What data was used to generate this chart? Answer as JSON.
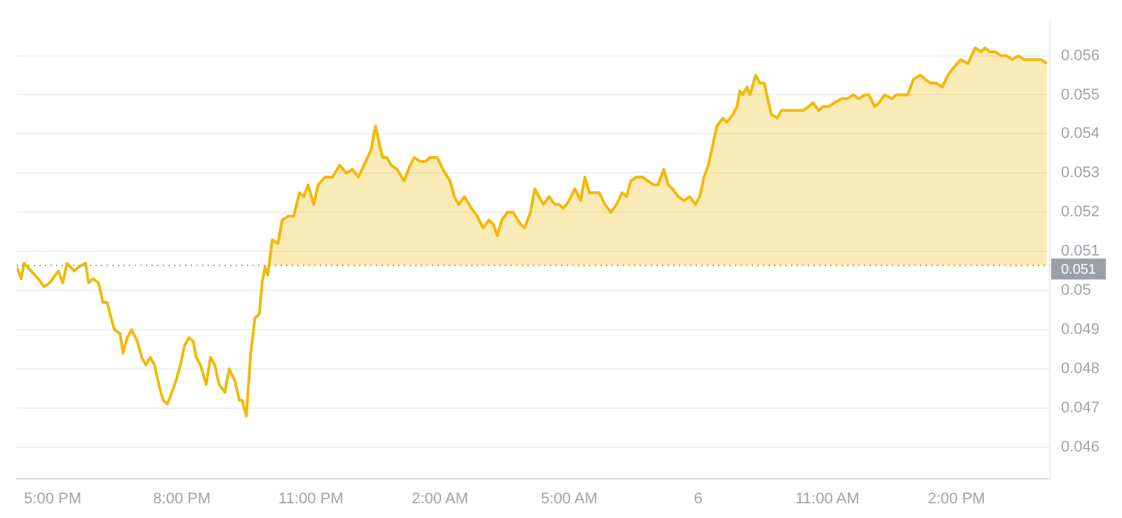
{
  "chart_data": {
    "type": "area",
    "legend": false,
    "grid": "y",
    "marker": "none",
    "line_style": "solid",
    "xlim": [
      "--01-05T16:10",
      "--01-06T16:10"
    ],
    "ylim": [
      0.0452,
      0.0569
    ],
    "xticks": [
      {
        "value": "--01-05T17:00",
        "label": "5:00 PM"
      },
      {
        "value": "--01-05T20:00",
        "label": "8:00 PM"
      },
      {
        "value": "--01-05T23:00",
        "label": "11:00 PM"
      },
      {
        "value": "--01-06T02:00",
        "label": "2:00 AM"
      },
      {
        "value": "--01-06T05:00",
        "label": "5:00 AM"
      },
      {
        "value": "--01-06T08:00",
        "label": "6"
      },
      {
        "value": "--01-06T11:00",
        "label": "11:00 AM"
      },
      {
        "value": "--01-06T14:00",
        "label": "2:00 PM"
      }
    ],
    "yticks": [
      0.046,
      0.047,
      0.048,
      0.049,
      0.05,
      0.051,
      0.052,
      0.053,
      0.054,
      0.055,
      0.056
    ],
    "ref_lines": [
      {
        "axis": "y",
        "value": 0.05064,
        "label": "0.051",
        "color": "#9aa0a6",
        "line_style": "dotted"
      }
    ],
    "series": [
      {
        "color": "#f0b90b",
        "x": [
          "--01-05T16:10",
          "--01-05T16:16",
          "--01-05T16:20",
          "--01-05T16:30",
          "--01-05T16:40",
          "--01-05T16:48",
          "--01-05T16:56",
          "--01-05T17:08",
          "--01-05T17:14",
          "--01-05T17:20",
          "--01-05T17:30",
          "--01-05T17:36",
          "--01-05T17:46",
          "--01-05T17:50",
          "--01-05T17:56",
          "--01-05T18:04",
          "--01-05T18:10",
          "--01-05T18:16",
          "--01-05T18:20",
          "--01-05T18:26",
          "--01-05T18:34",
          "--01-05T18:38",
          "--01-05T18:44",
          "--01-05T18:50",
          "--01-05T18:58",
          "--01-05T19:04",
          "--01-05T19:10",
          "--01-05T19:16",
          "--01-05T19:22",
          "--01-05T19:28",
          "--01-05T19:34",
          "--01-05T19:40",
          "--01-05T19:46",
          "--01-05T19:52",
          "--01-05T19:58",
          "--01-05T20:04",
          "--01-05T20:10",
          "--01-05T20:16",
          "--01-05T20:20",
          "--01-05T20:26",
          "--01-05T20:34",
          "--01-05T20:40",
          "--01-05T20:46",
          "--01-05T20:52",
          "--01-05T21:00",
          "--01-05T21:06",
          "--01-05T21:14",
          "--01-05T21:20",
          "--01-05T21:24",
          "--01-05T21:30",
          "--01-05T21:36",
          "--01-05T21:42",
          "--01-05T21:48",
          "--01-05T21:52",
          "--01-05T21:56",
          "--01-05T22:00",
          "--01-05T22:06",
          "--01-05T22:14",
          "--01-05T22:20",
          "--01-05T22:28",
          "--01-05T22:36",
          "--01-05T22:44",
          "--01-05T22:50",
          "--01-05T22:56",
          "--01-05T23:04",
          "--01-05T23:10",
          "--01-05T23:20",
          "--01-05T23:30",
          "--01-05T23:40",
          "--01-05T23:50",
          "--01-05T23:58",
          "--01-06T00:06",
          "--01-06T00:14",
          "--01-06T00:24",
          "--01-06T00:30",
          "--01-06T00:36",
          "--01-06T00:40",
          "--01-06T00:46",
          "--01-06T00:52",
          "--01-06T01:00",
          "--01-06T01:10",
          "--01-06T01:16",
          "--01-06T01:24",
          "--01-06T01:32",
          "--01-06T01:40",
          "--01-06T01:46",
          "--01-06T01:56",
          "--01-06T02:04",
          "--01-06T02:14",
          "--01-06T02:20",
          "--01-06T02:26",
          "--01-06T02:34",
          "--01-06T02:44",
          "--01-06T02:52",
          "--01-06T03:00",
          "--01-06T03:08",
          "--01-06T03:14",
          "--01-06T03:20",
          "--01-06T03:26",
          "--01-06T03:34",
          "--01-06T03:42",
          "--01-06T03:52",
          "--01-06T03:58",
          "--01-06T04:06",
          "--01-06T04:12",
          "--01-06T04:18",
          "--01-06T04:24",
          "--01-06T04:32",
          "--01-06T04:40",
          "--01-06T04:46",
          "--01-06T04:52",
          "--01-06T05:00",
          "--01-06T05:08",
          "--01-06T05:16",
          "--01-06T05:22",
          "--01-06T05:28",
          "--01-06T05:36",
          "--01-06T05:42",
          "--01-06T05:50",
          "--01-06T05:58",
          "--01-06T06:06",
          "--01-06T06:14",
          "--01-06T06:20",
          "--01-06T06:26",
          "--01-06T06:34",
          "--01-06T06:42",
          "--01-06T06:50",
          "--01-06T06:58",
          "--01-06T07:04",
          "--01-06T07:12",
          "--01-06T07:18",
          "--01-06T07:24",
          "--01-06T07:32",
          "--01-06T07:40",
          "--01-06T07:48",
          "--01-06T07:56",
          "--01-06T08:02",
          "--01-06T08:08",
          "--01-06T08:14",
          "--01-06T08:20",
          "--01-06T08:26",
          "--01-06T08:34",
          "--01-06T08:40",
          "--01-06T08:48",
          "--01-06T08:54",
          "--01-06T08:58",
          "--01-06T09:02",
          "--01-06T09:08",
          "--01-06T09:12",
          "--01-06T09:20",
          "--01-06T09:26",
          "--01-06T09:32",
          "--01-06T09:38",
          "--01-06T09:42",
          "--01-06T09:50",
          "--01-06T09:56",
          "--01-06T10:02",
          "--01-06T10:10",
          "--01-06T10:18",
          "--01-06T10:26",
          "--01-06T10:34",
          "--01-06T10:40",
          "--01-06T10:48",
          "--01-06T10:54",
          "--01-06T11:02",
          "--01-06T11:10",
          "--01-06T11:20",
          "--01-06T11:28",
          "--01-06T11:36",
          "--01-06T11:44",
          "--01-06T11:52",
          "--01-06T11:58",
          "--01-06T12:06",
          "--01-06T12:12",
          "--01-06T12:20",
          "--01-06T12:30",
          "--01-06T12:36",
          "--01-06T12:44",
          "--01-06T12:52",
          "--01-06T13:00",
          "--01-06T13:10",
          "--01-06T13:16",
          "--01-06T13:24",
          "--01-06T13:32",
          "--01-06T13:40",
          "--01-06T13:48",
          "--01-06T13:56",
          "--01-06T14:06",
          "--01-06T14:16",
          "--01-06T14:26",
          "--01-06T14:34",
          "--01-06T14:40",
          "--01-06T14:46",
          "--01-06T14:54",
          "--01-06T15:02",
          "--01-06T15:10",
          "--01-06T15:18",
          "--01-06T15:26",
          "--01-06T15:34",
          "--01-06T15:42",
          "--01-06T15:50",
          "--01-06T15:58",
          "--01-06T16:06"
        ],
        "values": [
          0.0506,
          0.0503,
          0.0507,
          0.0505,
          0.0503,
          0.0501,
          0.0502,
          0.0505,
          0.0502,
          0.0507,
          0.0505,
          0.0506,
          0.0507,
          0.0502,
          0.0503,
          0.0502,
          0.0497,
          0.0497,
          0.0494,
          0.049,
          0.0489,
          0.0484,
          0.0488,
          0.049,
          0.0487,
          0.0483,
          0.0481,
          0.0483,
          0.0481,
          0.0476,
          0.0472,
          0.0471,
          0.0474,
          0.0477,
          0.0481,
          0.0486,
          0.0488,
          0.0487,
          0.0483,
          0.0481,
          0.0476,
          0.0483,
          0.0481,
          0.0476,
          0.0474,
          0.048,
          0.0477,
          0.0472,
          0.0472,
          0.0468,
          0.0484,
          0.0493,
          0.0494,
          0.0502,
          0.0506,
          0.0504,
          0.0513,
          0.0512,
          0.0518,
          0.0519,
          0.0519,
          0.0525,
          0.0524,
          0.0527,
          0.0522,
          0.0527,
          0.0529,
          0.0529,
          0.0532,
          0.053,
          0.0531,
          0.0529,
          0.0532,
          0.0536,
          0.0542,
          0.0537,
          0.0534,
          0.0534,
          0.0532,
          0.0531,
          0.0528,
          0.0531,
          0.0534,
          0.0533,
          0.0533,
          0.0534,
          0.0534,
          0.0531,
          0.0528,
          0.0524,
          0.0522,
          0.0524,
          0.0521,
          0.0519,
          0.0516,
          0.0518,
          0.0517,
          0.0514,
          0.0518,
          0.052,
          0.052,
          0.0517,
          0.0516,
          0.052,
          0.0526,
          0.0524,
          0.0522,
          0.0524,
          0.0522,
          0.0522,
          0.0521,
          0.0523,
          0.0526,
          0.0523,
          0.0529,
          0.0525,
          0.0525,
          0.0525,
          0.0522,
          0.052,
          0.0522,
          0.0525,
          0.0524,
          0.0528,
          0.0529,
          0.0529,
          0.0528,
          0.0527,
          0.0527,
          0.0531,
          0.0527,
          0.0526,
          0.0524,
          0.0523,
          0.0524,
          0.0522,
          0.0524,
          0.0529,
          0.0532,
          0.0537,
          0.0542,
          0.0544,
          0.0543,
          0.0545,
          0.0547,
          0.0551,
          0.055,
          0.0552,
          0.055,
          0.0555,
          0.0553,
          0.0553,
          0.0548,
          0.0545,
          0.0544,
          0.0546,
          0.0546,
          0.0546,
          0.0546,
          0.0546,
          0.0547,
          0.0548,
          0.0546,
          0.0547,
          0.0547,
          0.0548,
          0.0549,
          0.0549,
          0.055,
          0.0549,
          0.055,
          0.055,
          0.0547,
          0.0548,
          0.055,
          0.0549,
          0.055,
          0.055,
          0.055,
          0.0554,
          0.0555,
          0.0554,
          0.0553,
          0.0553,
          0.0552,
          0.0555,
          0.0557,
          0.0559,
          0.0558,
          0.0562,
          0.0561,
          0.0562,
          0.0561,
          0.0561,
          0.056,
          0.056,
          0.0559,
          0.056,
          0.0559,
          0.0559,
          0.0559,
          0.0559,
          0.0558
        ]
      }
    ]
  }
}
